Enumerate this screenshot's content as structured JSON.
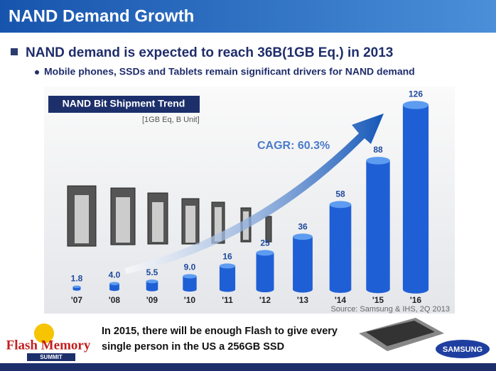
{
  "slide": {
    "title": "NAND Demand Growth",
    "bullet": "NAND demand is expected to reach 36B(1GB Eq.) in 2013",
    "sub_bullet": "Mobile phones, SSDs and Tablets remain significant drivers for NAND demand",
    "footer_note": "In 2015, there will be enough Flash to give every single person in the US a 256GB SSD",
    "logo_left": "Flash Memory",
    "logo_left_sub": "SUMMIT",
    "logo_right": "SAMSUNG"
  },
  "chart_data": {
    "type": "bar",
    "title": "NAND Bit Shipment Trend",
    "subtitle": "[1GB Eq, B Unit]",
    "annotation": "CAGR: 60.3%",
    "source": "Source: Samsung & IHS, 2Q 2013",
    "categories": [
      "'07",
      "'08",
      "'09",
      "'10",
      "'11",
      "'12",
      "'13",
      "'14",
      "'15",
      "'16"
    ],
    "values": [
      1.8,
      4.0,
      5.5,
      9.0,
      16,
      25,
      36,
      58,
      88,
      126
    ],
    "value_labels": [
      "1.8",
      "4.0",
      "5.5",
      "9.0",
      "16",
      "25",
      "36",
      "58",
      "88",
      "126"
    ],
    "color": "#1f5fd6"
  }
}
